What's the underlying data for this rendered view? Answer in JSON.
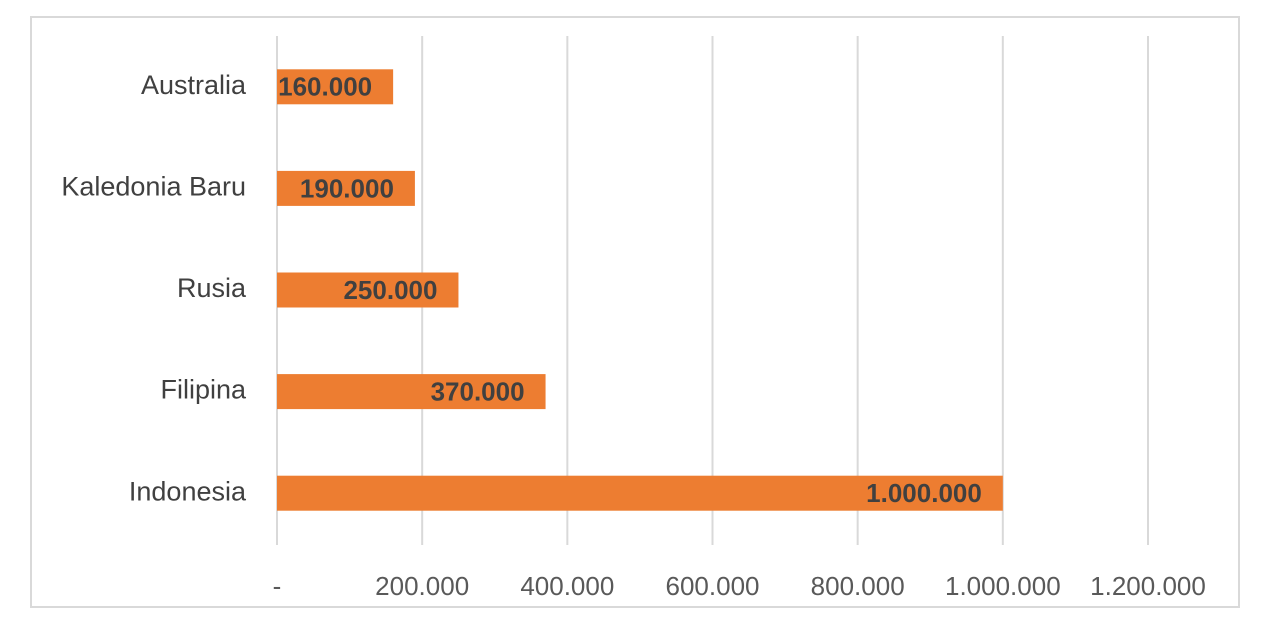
{
  "chart_data": {
    "type": "bar",
    "orientation": "horizontal",
    "title": "",
    "xlabel": "",
    "ylabel": "",
    "categories": [
      "Australia",
      "Kaledonia Baru",
      "Rusia",
      "Filipina",
      "Indonesia"
    ],
    "values": [
      160000,
      190000,
      250000,
      370000,
      1000000
    ],
    "data_labels": [
      "160.000",
      "190.000",
      "250.000",
      "370.000",
      "1.000.000"
    ],
    "xlim": [
      0,
      1200000
    ],
    "x_ticks": [
      0,
      200000,
      400000,
      600000,
      800000,
      1000000,
      1200000
    ],
    "x_tick_labels": [
      "-",
      "200.000",
      "400.000",
      "600.000",
      "800.000",
      "1.000.000",
      "1.200.000"
    ],
    "grid": "vertical",
    "legend": "none",
    "bar_color": "#ED7D31",
    "grid_color": "#D9D9D9",
    "frame_color": "#D9D9D9"
  }
}
